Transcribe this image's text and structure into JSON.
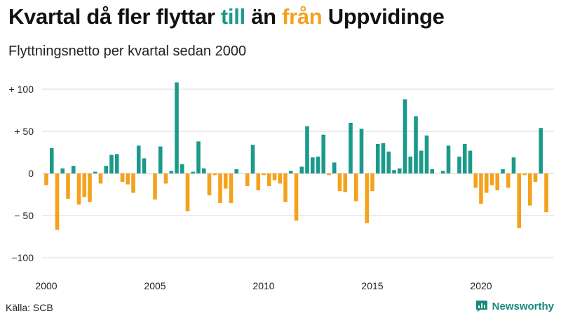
{
  "header": {
    "title_part1": "Kvartal då fler flyttar ",
    "title_pos": "till",
    "title_part2": " än ",
    "title_neg": "från",
    "title_part3": " Uppvidinge",
    "subtitle": "Flyttningsnetto per kvartal sedan 2000"
  },
  "footer": {
    "source": "Källa: SCB",
    "brand": "Newsworthy",
    "brand_icon": "newsworthy-logo-icon"
  },
  "colors": {
    "positive": "#1a9a8a",
    "negative": "#f5a11c",
    "grid": "#d9d9d9",
    "brand": "#16897b"
  },
  "chart_data": {
    "type": "bar",
    "x_start": "2000 Q1",
    "x_ticks": [
      "2000",
      "2005",
      "2010",
      "2015",
      "2020"
    ],
    "y_ticks": [
      100,
      50,
      0,
      -50,
      -100
    ],
    "y_tick_labels": [
      "+ 100",
      "+ 50",
      "0",
      "− 50",
      "−100"
    ],
    "ylim": [
      -110,
      110
    ],
    "grid": true,
    "values": [
      -14,
      30,
      -67,
      6,
      -30,
      9,
      -37,
      -28,
      -34,
      2,
      -12,
      9,
      22,
      23,
      -10,
      -13,
      -23,
      33,
      18,
      0,
      -31,
      32,
      -12,
      3,
      108,
      11,
      -45,
      2,
      38,
      6,
      -26,
      -2,
      -35,
      -18,
      -35,
      5,
      0,
      -15,
      34,
      -20,
      -2,
      -15,
      -8,
      -12,
      -34,
      3,
      -56,
      8,
      56,
      19,
      20,
      46,
      -2,
      13,
      -21,
      -22,
      60,
      -33,
      53,
      -59,
      -21,
      35,
      36,
      26,
      4,
      6,
      88,
      20,
      68,
      27,
      45,
      5,
      0,
      3,
      33,
      0,
      20,
      35,
      27,
      -17,
      -36,
      -23,
      -14,
      -20,
      5,
      -17,
      19,
      -65,
      -2,
      -38,
      -10,
      54,
      -46
    ]
  }
}
